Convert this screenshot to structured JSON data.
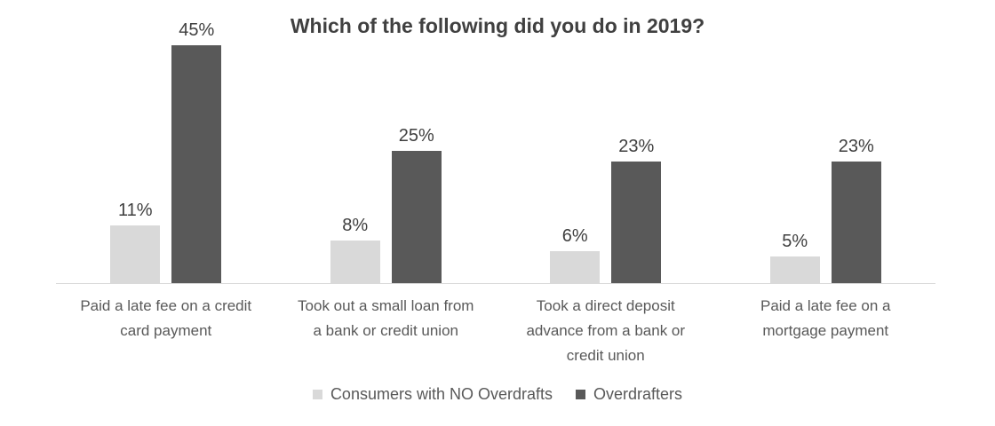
{
  "title": "Which of the following did you do in 2019?",
  "chart_data": {
    "type": "bar",
    "title": "Which of the following did you do in 2019?",
    "xlabel": "",
    "ylabel": "",
    "ylim": [
      0,
      50
    ],
    "grid": false,
    "legend_position": "bottom",
    "value_label_suffix": "%",
    "categories": [
      "Paid a late fee on a credit\ncard payment",
      "Took out a small loan from\na bank or credit union",
      "Took a direct deposit\nadvance from a bank or\ncredit union",
      "Paid a late fee on a\nmortgage payment"
    ],
    "series": [
      {
        "name": "Consumers with NO Overdrafts",
        "color": "#d9d9d9",
        "values": [
          11,
          8,
          6,
          5
        ]
      },
      {
        "name": "Overdrafters",
        "color": "#595959",
        "values": [
          45,
          25,
          23,
          23
        ]
      }
    ]
  },
  "colors": {
    "background": "#ffffff",
    "axis_line": "#d9d9d9",
    "title_text": "#404040",
    "value_label_text": "#3f3f3f",
    "category_text": "#595959",
    "legend_text": "#595959"
  }
}
